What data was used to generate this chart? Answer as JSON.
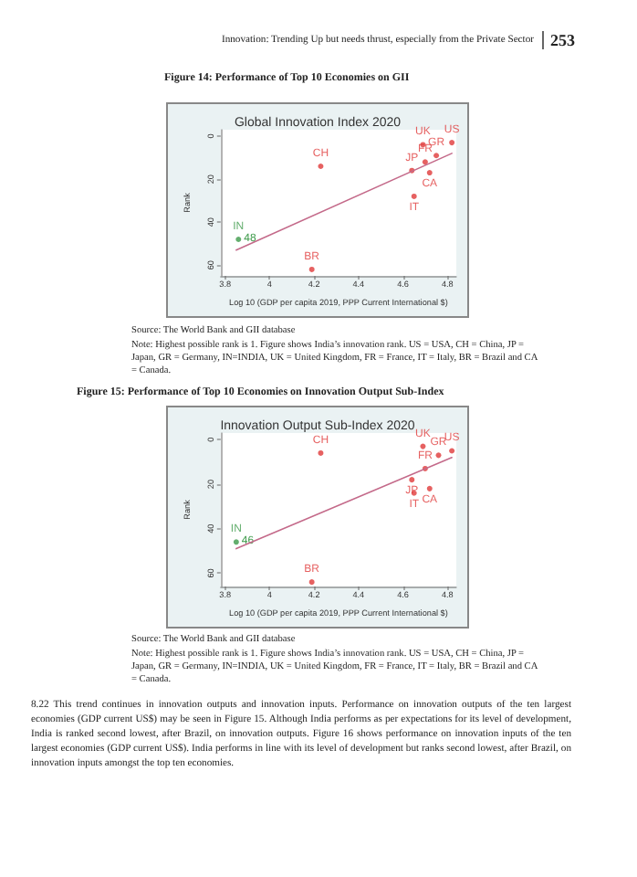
{
  "chart_data": [
    {
      "type": "scatter",
      "title": "Global Innovation Index 2020",
      "subtitle": "Figure 14: Performance of Top 10 Economies on GII",
      "xlabel": "Log 10 (GDP per capita 2019, PPP Current International $)",
      "ylabel": "Rank",
      "annotations": [
        "Innovation: Trending Up but needs thrust, especially from the Private Sector",
        "253",
        "Source: The World Bank and GII database",
        "Note: Highest possible rank is 1. Figure shows India’s innovation rank. US = USA, CH = China, JP = Japan, GR = Germany, IN=INDIA, UK = United Kingdom, FR = France, IT = Italy, BR = Brazil and CA = Canada.",
        {
          "text": "48",
          "x": 3.86,
          "y": 48
        }
      ],
      "xlim": [
        3.78,
        4.84
      ],
      "xticks": [
        3.8,
        4,
        4.2,
        4.4,
        4.6,
        4.8
      ],
      "ylim": [
        65,
        -3
      ],
      "yticks": [
        0,
        20,
        40,
        60
      ],
      "grid": false,
      "marker": "circle",
      "series": [
        {
          "type": "scatter",
          "x": [
            4.82,
            4.69,
            4.75,
            4.7,
            4.64,
            4.72,
            4.65,
            4.23,
            3.86,
            4.19
          ],
          "values": [
            3,
            4,
            9,
            12,
            16,
            17,
            28,
            14,
            48,
            62
          ],
          "colors": [
            "#e03a3a",
            "#e03a3a",
            "#e03a3a",
            "#e03a3a",
            "#e03a3a",
            "#e03a3a",
            "#e03a3a",
            "#e03a3a",
            "#3d9a4a",
            "#e03a3a"
          ],
          "value_labels": [
            "US",
            "UK",
            "GR",
            "FR",
            "JP",
            "CA",
            "IT",
            "CH",
            "IN",
            "BR"
          ]
        },
        {
          "type": "line",
          "color": "#c46a8a",
          "x": [
            3.85,
            4.82
          ],
          "values": [
            53,
            8
          ],
          "marker": "none"
        }
      ]
    },
    {
      "type": "scatter",
      "title": "Innovation Output Sub-Index 2020",
      "subtitle": "Figure 15: Performance of Top 10 Economies on Innovation Output Sub-Index",
      "xlabel": "Log 10 (GDP per capita 2019, PPP Current International $)",
      "ylabel": "Rank",
      "annotations": [
        "Source: The World Bank and GII database",
        "Note: Highest possible rank is 1. Figure shows India’s innovation rank. US = USA, CH = China, JP = Japan, GR = Germany, IN=INDIA, UK = United Kingdom, FR = France, IT = Italy, BR = Brazil and CA = Canada.",
        "8.22 This trend continues in innovation outputs and innovation inputs. Performance on innovation outputs of the ten largest economies (GDP current US$) may be seen in Figure 15. Although India performs as per expectations for its level of development, India is ranked second lowest, after Brazil, on innovation outputs. Figure 16 shows performance on innovation inputs of the ten largest economies (GDP current US$). India performs in line with its level of development but ranks second lowest, after Brazil, on innovation inputs amongst the top ten economies.",
        {
          "text": "46",
          "x": 3.85,
          "y": 46
        }
      ],
      "xlim": [
        3.78,
        4.84
      ],
      "xticks": [
        3.8,
        4,
        4.2,
        4.4,
        4.6,
        4.8
      ],
      "ylim": [
        66,
        -3
      ],
      "yticks": [
        0,
        20,
        40,
        60
      ],
      "grid": false,
      "marker": "circle",
      "series": [
        {
          "type": "scatter",
          "x": [
            4.82,
            4.69,
            4.76,
            4.7,
            4.64,
            4.72,
            4.65,
            4.23,
            3.85,
            4.19
          ],
          "values": [
            5,
            3,
            7,
            13,
            18,
            22,
            24,
            6,
            46,
            64
          ],
          "colors": [
            "#e03a3a",
            "#e03a3a",
            "#e03a3a",
            "#e03a3a",
            "#e03a3a",
            "#e03a3a",
            "#e03a3a",
            "#e03a3a",
            "#3d9a4a",
            "#e03a3a"
          ],
          "value_labels": [
            "US",
            "UK",
            "GR",
            "FR",
            "JP",
            "CA",
            "IT",
            "CH",
            "IN",
            "BR"
          ]
        },
        {
          "type": "line",
          "color": "#c46a8a",
          "x": [
            3.85,
            4.82
          ],
          "values": [
            49,
            8
          ],
          "marker": "none"
        }
      ]
    }
  ]
}
